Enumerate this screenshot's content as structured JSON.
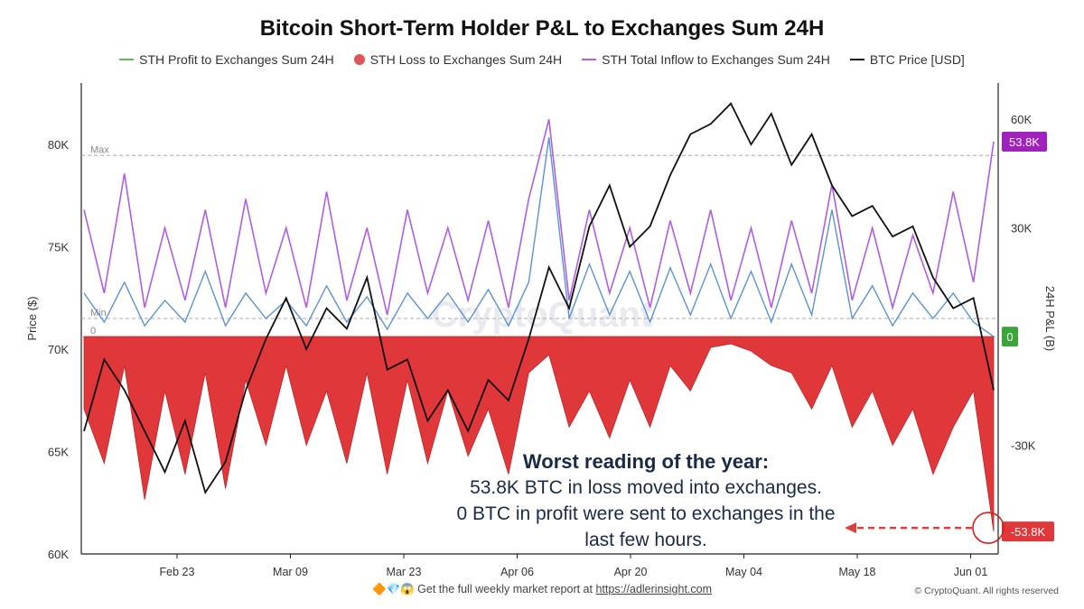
{
  "title": "Bitcoin Short-Term Holder P&L to Exchanges Sum 24H",
  "legend": [
    {
      "label": "STH Profit to Exchanges Sum 24H",
      "color": "#5fba5f",
      "marker": "line"
    },
    {
      "label": "STH Loss to Exchanges Sum 24H",
      "color": "#e05555",
      "marker": "dot"
    },
    {
      "label": "STH Total Inflow to Exchanges Sum 24H",
      "color": "#b05ee0",
      "marker": "line"
    },
    {
      "label": "BTC Price [USD]",
      "color": "#111111",
      "marker": "line"
    }
  ],
  "footer": {
    "emojis": "🔶💎😱",
    "text": "Get the full weekly market report at",
    "link": "https://adlerinsight.com",
    "copyright": "© CryptoQuant. All rights reserved"
  },
  "annotation": {
    "headline": "Worst reading of the year:",
    "line1": "53.8K BTC in loss moved into exchanges.",
    "line2": "0 BTC in profit were sent to exchanges in the",
    "line3": "last few hours."
  },
  "watermark": "CryptoQuant",
  "colors": {
    "profit": "#5b93d3",
    "loss": "#e0383a",
    "inflow": "#b05ee0",
    "price": "#111111",
    "tag_inflow": "#a020c0",
    "tag_zero": "#3aa63a",
    "tag_loss": "#e0383a"
  },
  "chart_data": {
    "type": "area",
    "x_ticks": [
      "Feb 23",
      "Mar 09",
      "Mar 23",
      "Apr 06",
      "Apr 20",
      "May 04",
      "May 18",
      "Jun 01"
    ],
    "left_axis": {
      "label": "Price ($)",
      "ticks": [
        "80K",
        "75K",
        "70K",
        "65K",
        "60K"
      ],
      "range": [
        60000,
        83000
      ]
    },
    "right_axis": {
      "label": "24H P&L (B)",
      "ticks": [
        "60K",
        "30K",
        "-30K"
      ],
      "range": [
        -60000,
        70000
      ]
    },
    "reference_lines": {
      "max_label": "Max",
      "min_label": "Min",
      "zero_label": "0",
      "max_value": 50000,
      "min_value": 5000
    },
    "last_value_tags": {
      "inflow": "53.8K",
      "zero": "0",
      "loss": "-53.8K"
    },
    "series": [
      {
        "name": "BTC Price [USD]",
        "values": [
          66000,
          69500,
          68000,
          66000,
          64000,
          66500,
          63000,
          64500,
          68000,
          70500,
          72500,
          70000,
          72000,
          71000,
          73500,
          69000,
          69500,
          66500,
          68000,
          66000,
          68500,
          67500,
          70500,
          74000,
          72000,
          76000,
          78000,
          75000,
          76000,
          78500,
          80500,
          81000,
          82000,
          80000,
          81500,
          79000,
          80500,
          78000,
          76500,
          77000,
          75500,
          76000,
          73500,
          72000,
          72500,
          68000
        ]
      },
      {
        "name": "STH Total Inflow to Exchanges Sum 24H",
        "values": [
          35000,
          12000,
          45000,
          8000,
          30000,
          10000,
          35000,
          8000,
          38000,
          12000,
          30000,
          8000,
          40000,
          10000,
          30000,
          6000,
          35000,
          12000,
          30000,
          10000,
          32000,
          8000,
          38000,
          60000,
          10000,
          35000,
          12000,
          30000,
          8000,
          32000,
          12000,
          35000,
          10000,
          30000,
          8000,
          32000,
          12000,
          42000,
          10000,
          30000,
          8000,
          28000,
          12000,
          40000,
          15000,
          53800
        ]
      },
      {
        "name": "STH Profit to Exchanges Sum 24H",
        "values": [
          12000,
          4000,
          15000,
          3000,
          10000,
          4000,
          18000,
          3000,
          12000,
          5000,
          10000,
          3000,
          14000,
          4000,
          11000,
          2000,
          12000,
          5000,
          12000,
          4000,
          13000,
          3000,
          15000,
          55000,
          5000,
          20000,
          6000,
          18000,
          4000,
          19000,
          6000,
          20000,
          5000,
          18000,
          4000,
          20000,
          6000,
          35000,
          5000,
          14000,
          3000,
          12000,
          5000,
          12000,
          4000,
          0
        ]
      },
      {
        "name": "STH Loss to Exchanges Sum 24H",
        "values": [
          -20000,
          -35000,
          -8000,
          -45000,
          -15000,
          -38000,
          -10000,
          -42000,
          -12000,
          -30000,
          -8000,
          -30000,
          -15000,
          -35000,
          -10000,
          -38000,
          -12000,
          -35000,
          -15000,
          -33000,
          -20000,
          -38000,
          -10000,
          -5000,
          -25000,
          -15000,
          -28000,
          -12000,
          -25000,
          -8000,
          -15000,
          -3000,
          -2000,
          -4000,
          -8000,
          -10000,
          -20000,
          -8000,
          -25000,
          -15000,
          -30000,
          -20000,
          -38000,
          -25000,
          -15000,
          -53800
        ]
      }
    ]
  }
}
